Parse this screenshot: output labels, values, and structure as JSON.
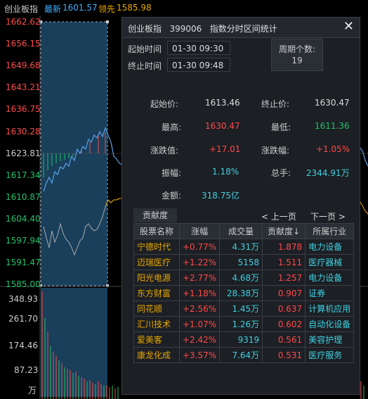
{
  "header": {
    "index_name": "创业板指",
    "latest_label": "最新",
    "latest_value": "1601.57",
    "leading_label": "领先",
    "leading_value": "1585.98"
  },
  "price_axis": {
    "labels": [
      "1662.62",
      "1656.15",
      "1649.68",
      "1643.21",
      "1636.75",
      "1630.28",
      "1623.81",
      "1617.34",
      "1610.87",
      "1604.40",
      "1597.94",
      "1591.47",
      "1585.00"
    ],
    "colors": [
      "#ff4a4a",
      "#ff4a4a",
      "#ff4a4a",
      "#ff4a4a",
      "#ff4a4a",
      "#ff4a4a",
      "#cccccc",
      "#21c36a",
      "#21c36a",
      "#21c36a",
      "#21c36a",
      "#21c36a",
      "#21c36a"
    ]
  },
  "volume_axis": {
    "labels": [
      "348.93",
      "261.70",
      "174.46",
      "87.23"
    ],
    "unit": "万"
  },
  "dialog": {
    "title": "创业板指",
    "code": "399006",
    "subtitle": "指数分时区间统计",
    "start_time_label": "起始时间",
    "start_time_value": "01-30 09:30",
    "end_time_label": "终止时间",
    "end_time_value": "01-30 09:48",
    "period_label": "周期个数:",
    "period_value": "19",
    "stats": {
      "start_price_label": "起始价:",
      "start_price": "1613.46",
      "end_price_label": "终止价:",
      "end_price": "1630.47",
      "high_label": "最高:",
      "high": "1630.47",
      "low_label": "最低:",
      "low": "1611.36",
      "change_label": "涨跌值:",
      "change": "+17.01",
      "change_pct_label": "涨跌幅:",
      "change_pct": "+1.05%",
      "amplitude_label": "振幅:",
      "amplitude": "1.18%",
      "turnover_label": "总手:",
      "turnover": "2344.91万",
      "amount_label": "金额:",
      "amount": "318.75亿"
    },
    "contrib_tab": "贡献度",
    "prev_page": "< 上一页",
    "next_page": "下一页 >",
    "columns": [
      "股票名称",
      "涨幅",
      "成交量",
      "贡献度↓",
      "所属行业"
    ],
    "rows": [
      {
        "name": "宁德时代",
        "pct": "+0.77%",
        "vol": "4.31万",
        "contrib": "1.878",
        "industry": "电力设备"
      },
      {
        "name": "迈瑞医疗",
        "pct": "+1.22%",
        "vol": "5158",
        "contrib": "1.511",
        "industry": "医疗器械"
      },
      {
        "name": "阳光电源",
        "pct": "+2.77%",
        "vol": "4.68万",
        "contrib": "1.257",
        "industry": "电力设备"
      },
      {
        "name": "东方财富",
        "pct": "+1.18%",
        "vol": "28.38万",
        "contrib": "0.907",
        "industry": "证券"
      },
      {
        "name": "同花顺",
        "pct": "+2.56%",
        "vol": "1.45万",
        "contrib": "0.637",
        "industry": "计算机应用"
      },
      {
        "name": "汇川技术",
        "pct": "+1.07%",
        "vol": "1.26万",
        "contrib": "0.602",
        "industry": "自动化设备"
      },
      {
        "name": "爱美客",
        "pct": "+2.42%",
        "vol": "9319",
        "contrib": "0.561",
        "industry": "美容护理"
      },
      {
        "name": "康龙化成",
        "pct": "+3.57%",
        "vol": "7.64万",
        "contrib": "0.531",
        "industry": "医疗服务"
      }
    ]
  },
  "colors": {
    "up": "#ff4a4a",
    "down": "#21c36a",
    "price_line": "#5aa0e6",
    "avg_line": "#e8a800",
    "selection": "#1d4a6b"
  }
}
